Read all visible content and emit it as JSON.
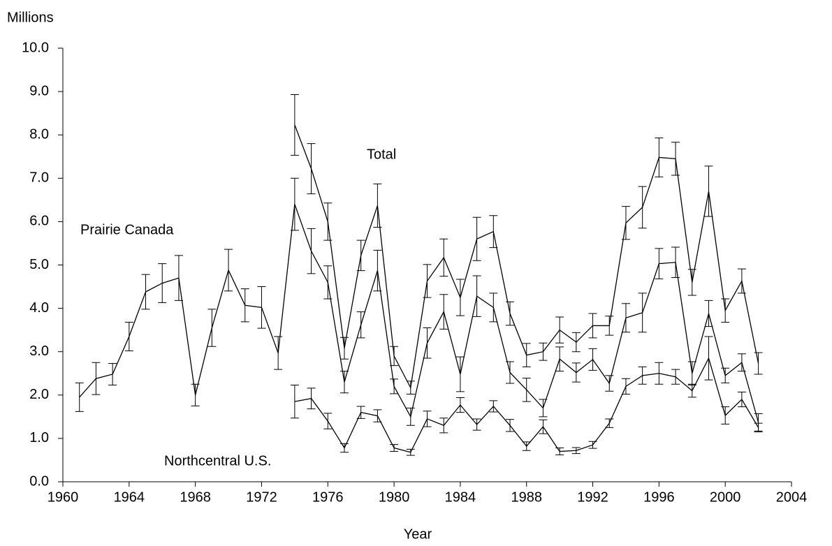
{
  "chart_data": {
    "type": "line",
    "y_label": "Millions",
    "x_label": "Year",
    "xlim": [
      1960,
      2004
    ],
    "xticks": [
      1960,
      1964,
      1968,
      1972,
      1976,
      1980,
      1984,
      1988,
      1992,
      1996,
      2000,
      2004
    ],
    "ylim": [
      0,
      10
    ],
    "yticks": [
      {
        "value": 0,
        "label": "0.0"
      },
      {
        "value": 1,
        "label": "1.0"
      },
      {
        "value": 2,
        "label": "2.0"
      },
      {
        "value": 3,
        "label": "3.0"
      },
      {
        "value": 4,
        "label": "4.0"
      },
      {
        "value": 5,
        "label": "5.0"
      },
      {
        "value": 6,
        "label": "6.0"
      },
      {
        "value": 7,
        "label": "7.0"
      },
      {
        "value": 8,
        "label": "8.0"
      },
      {
        "value": 9,
        "label": "9.0"
      },
      {
        "value": 10,
        "label": "10.0"
      }
    ],
    "grid": false,
    "series": [
      {
        "name": "Total",
        "color": "#000000",
        "x": [
          1974,
          1975,
          1976,
          1977,
          1978,
          1979,
          1980,
          1981,
          1982,
          1983,
          1984,
          1985,
          1986,
          1987,
          1988,
          1989,
          1990,
          1991,
          1992,
          1993,
          1994,
          1995,
          1996,
          1997,
          1998,
          1999,
          2000,
          2001,
          2002
        ],
        "values": [
          8.23,
          7.22,
          6.0,
          3.08,
          5.22,
          6.37,
          2.9,
          2.17,
          4.63,
          5.17,
          4.25,
          5.6,
          5.77,
          3.88,
          2.92,
          3.0,
          3.5,
          3.22,
          3.6,
          3.6,
          5.97,
          6.33,
          7.48,
          7.45,
          4.6,
          6.7,
          3.95,
          4.63,
          2.73
        ],
        "errors": [
          0.7,
          0.58,
          0.43,
          0.25,
          0.35,
          0.5,
          0.22,
          0.15,
          0.38,
          0.43,
          0.42,
          0.5,
          0.37,
          0.27,
          0.27,
          0.2,
          0.3,
          0.22,
          0.28,
          0.22,
          0.38,
          0.48,
          0.45,
          0.38,
          0.3,
          0.58,
          0.27,
          0.28,
          0.25
        ]
      },
      {
        "name": "Prairie Canada",
        "color": "#000000",
        "x": [
          1961,
          1962,
          1963,
          1964,
          1965,
          1966,
          1967,
          1968,
          1969,
          1970,
          1971,
          1972,
          1973,
          1974,
          1975,
          1976,
          1977,
          1978,
          1979,
          1980,
          1981,
          1982,
          1983,
          1984,
          1985,
          1986,
          1987,
          1988,
          1989,
          1990,
          1991,
          1992,
          1993,
          1994,
          1995,
          1996,
          1997,
          1998,
          1999,
          2000,
          2001,
          2002
        ],
        "values": [
          1.95,
          2.38,
          2.48,
          3.35,
          4.38,
          4.58,
          4.7,
          2.0,
          3.55,
          4.88,
          4.07,
          4.02,
          2.97,
          6.4,
          5.32,
          4.6,
          2.3,
          3.62,
          4.87,
          2.2,
          1.5,
          3.2,
          3.92,
          2.48,
          4.28,
          4.02,
          2.52,
          2.12,
          1.7,
          2.83,
          2.52,
          2.82,
          2.27,
          3.78,
          3.9,
          5.03,
          5.06,
          2.5,
          3.88,
          2.45,
          2.75,
          1.37
        ],
        "errors": [
          0.33,
          0.37,
          0.25,
          0.33,
          0.4,
          0.45,
          0.52,
          0.25,
          0.43,
          0.48,
          0.38,
          0.48,
          0.38,
          0.6,
          0.52,
          0.38,
          0.25,
          0.3,
          0.47,
          0.17,
          0.2,
          0.35,
          0.4,
          0.4,
          0.47,
          0.33,
          0.25,
          0.27,
          0.2,
          0.28,
          0.22,
          0.25,
          0.18,
          0.33,
          0.45,
          0.35,
          0.35,
          0.27,
          0.3,
          0.17,
          0.2,
          0.2
        ]
      },
      {
        "name": "Northcentral U.S.",
        "color": "#000000",
        "x": [
          1974,
          1975,
          1976,
          1977,
          1978,
          1979,
          1980,
          1981,
          1982,
          1983,
          1984,
          1985,
          1986,
          1987,
          1988,
          1989,
          1990,
          1991,
          1992,
          1993,
          1994,
          1995,
          1996,
          1997,
          1998,
          1999,
          2000,
          2001,
          2002
        ],
        "values": [
          1.85,
          1.92,
          1.4,
          0.78,
          1.6,
          1.52,
          0.78,
          0.68,
          1.45,
          1.3,
          1.77,
          1.32,
          1.74,
          1.3,
          0.82,
          1.27,
          0.7,
          0.72,
          0.85,
          1.35,
          2.2,
          2.45,
          2.5,
          2.42,
          2.1,
          2.85,
          1.53,
          1.9,
          1.25
        ],
        "errors": [
          0.38,
          0.24,
          0.18,
          0.1,
          0.14,
          0.14,
          0.08,
          0.07,
          0.18,
          0.17,
          0.17,
          0.13,
          0.13,
          0.14,
          0.1,
          0.16,
          0.08,
          0.07,
          0.08,
          0.1,
          0.18,
          0.2,
          0.25,
          0.17,
          0.15,
          0.5,
          0.2,
          0.17,
          0.1
        ]
      }
    ]
  }
}
